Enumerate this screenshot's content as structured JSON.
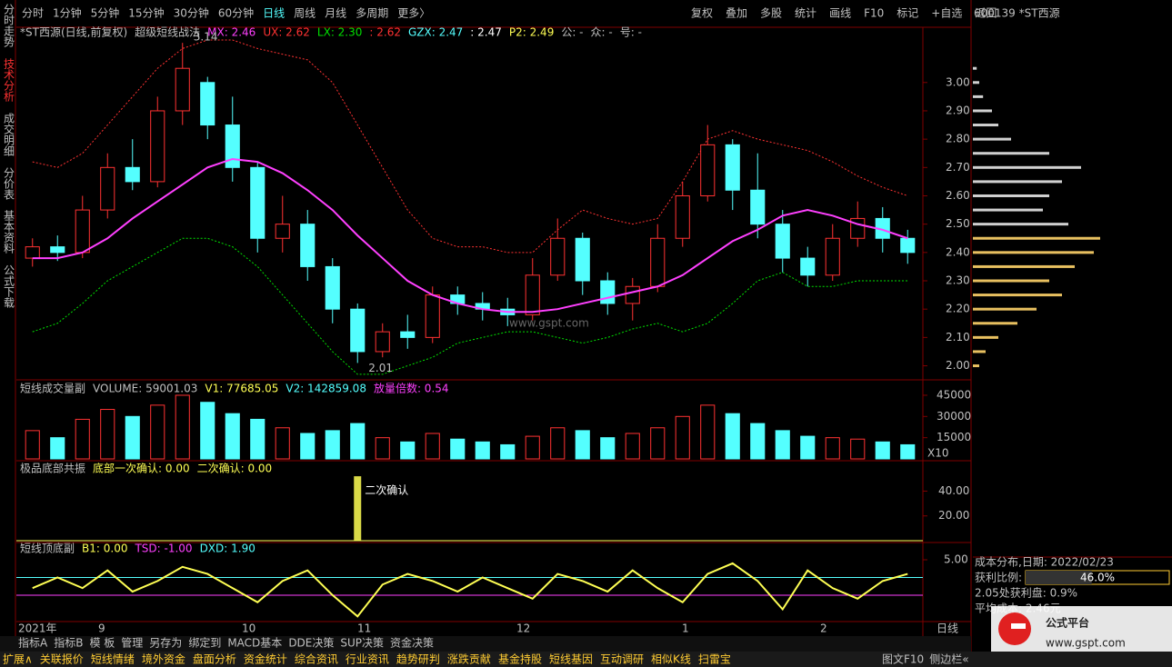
{
  "toolbar": {
    "periods": [
      "分时",
      "1分钟",
      "5分钟",
      "15分钟",
      "30分钟",
      "60分钟",
      "日线",
      "周线",
      "月线",
      "多周期",
      "更多〉"
    ],
    "active": "日线",
    "actions": [
      "复权",
      "叠加",
      "多股",
      "统计",
      "画线",
      "F10",
      "标记",
      "+自选",
      "返回"
    ]
  },
  "sidebar": [
    "分时走势",
    "技术分析",
    "成交明细",
    "分价表",
    "基本资料",
    "公式下载"
  ],
  "main_chart": {
    "header": [
      {
        "text": "*ST西源(日线,前复权)",
        "color": "#c0c0c0"
      },
      {
        "text": "超级短线战法",
        "color": "#c0c0c0"
      },
      {
        "text": "MX: 2.46",
        "color": "#ff40ff"
      },
      {
        "text": "UX: 2.62",
        "color": "#ff3232"
      },
      {
        "text": "LX: 2.30",
        "color": "#00e000"
      },
      {
        "text": ": 2.62",
        "color": "#ff3232"
      },
      {
        "text": "GZX: 2.47",
        "color": "#54ffff"
      },
      {
        "text": ": 2.47",
        "color": "#ffffff"
      },
      {
        "text": "P2: 2.49",
        "color": "#ffff54"
      },
      {
        "text": "公: -",
        "color": "#c0c0c0"
      },
      {
        "text": "众: -",
        "color": "#c0c0c0"
      },
      {
        "text": "号: -",
        "color": "#c0c0c0"
      }
    ],
    "high_label": "3.14",
    "low_label": "2.01",
    "watermark": "www.gspt.com",
    "ylim": [
      1.96,
      3.195
    ],
    "yticks": [
      {
        "value": 2,
        "label": "2.00"
      },
      {
        "value": 2.1,
        "label": "2.10"
      },
      {
        "value": 2.2,
        "label": "2.20"
      },
      {
        "value": 2.3,
        "label": "2.30"
      },
      {
        "value": 2.4,
        "label": "2.40"
      },
      {
        "value": 2.5,
        "label": "2.50"
      },
      {
        "value": 2.6,
        "label": "2.60"
      },
      {
        "value": 2.7,
        "label": "2.70"
      },
      {
        "value": 2.8,
        "label": "2.80"
      },
      {
        "value": 2.9,
        "label": "2.90"
      },
      {
        "value": 3,
        "label": "3.00"
      }
    ],
    "candles": [
      [
        2.38,
        2.42,
        2.45,
        2.35
      ],
      [
        2.42,
        2.4,
        2.46,
        2.37
      ],
      [
        2.4,
        2.55,
        2.6,
        2.38
      ],
      [
        2.55,
        2.7,
        2.75,
        2.52
      ],
      [
        2.7,
        2.65,
        2.8,
        2.62
      ],
      [
        2.65,
        2.9,
        2.95,
        2.63
      ],
      [
        2.9,
        3.05,
        3.14,
        2.85
      ],
      [
        3.0,
        2.85,
        3.02,
        2.8
      ],
      [
        2.85,
        2.7,
        2.95,
        2.65
      ],
      [
        2.7,
        2.45,
        2.72,
        2.4
      ],
      [
        2.45,
        2.5,
        2.6,
        2.4
      ],
      [
        2.5,
        2.35,
        2.55,
        2.3
      ],
      [
        2.35,
        2.2,
        2.38,
        2.15
      ],
      [
        2.2,
        2.05,
        2.22,
        2.01
      ],
      [
        2.05,
        2.12,
        2.15,
        2.03
      ],
      [
        2.12,
        2.1,
        2.18,
        2.06
      ],
      [
        2.1,
        2.25,
        2.28,
        2.08
      ],
      [
        2.25,
        2.22,
        2.28,
        2.18
      ],
      [
        2.22,
        2.2,
        2.26,
        2.16
      ],
      [
        2.2,
        2.18,
        2.24,
        2.14
      ],
      [
        2.18,
        2.32,
        2.38,
        2.16
      ],
      [
        2.32,
        2.45,
        2.52,
        2.3
      ],
      [
        2.45,
        2.3,
        2.47,
        2.25
      ],
      [
        2.3,
        2.22,
        2.33,
        2.18
      ],
      [
        2.22,
        2.28,
        2.31,
        2.16
      ],
      [
        2.28,
        2.45,
        2.5,
        2.26
      ],
      [
        2.45,
        2.6,
        2.65,
        2.42
      ],
      [
        2.6,
        2.78,
        2.85,
        2.58
      ],
      [
        2.78,
        2.62,
        2.8,
        2.55
      ],
      [
        2.62,
        2.5,
        2.75,
        2.45
      ],
      [
        2.5,
        2.38,
        2.55,
        2.33
      ],
      [
        2.38,
        2.32,
        2.42,
        2.28
      ],
      [
        2.32,
        2.45,
        2.5,
        2.3
      ],
      [
        2.45,
        2.52,
        2.58,
        2.42
      ],
      [
        2.52,
        2.45,
        2.56,
        2.4
      ],
      [
        2.45,
        2.4,
        2.48,
        2.36
      ]
    ],
    "ma": [
      2.38,
      2.38,
      2.4,
      2.45,
      2.52,
      2.58,
      2.64,
      2.7,
      2.73,
      2.72,
      2.68,
      2.62,
      2.55,
      2.46,
      2.38,
      2.3,
      2.25,
      2.22,
      2.2,
      2.19,
      2.19,
      2.2,
      2.22,
      2.24,
      2.26,
      2.28,
      2.32,
      2.38,
      2.44,
      2.48,
      2.53,
      2.55,
      2.53,
      2.5,
      2.48,
      2.45
    ],
    "upper": [
      2.72,
      2.7,
      2.75,
      2.85,
      2.95,
      3.05,
      3.12,
      3.15,
      3.15,
      3.12,
      3.1,
      3.08,
      3.0,
      2.85,
      2.7,
      2.55,
      2.45,
      2.42,
      2.42,
      2.4,
      2.4,
      2.48,
      2.55,
      2.52,
      2.5,
      2.52,
      2.65,
      2.8,
      2.83,
      2.8,
      2.78,
      2.76,
      2.72,
      2.67,
      2.63,
      2.6
    ],
    "lower": [
      2.12,
      2.15,
      2.22,
      2.3,
      2.35,
      2.4,
      2.45,
      2.45,
      2.42,
      2.35,
      2.25,
      2.15,
      2.05,
      1.97,
      1.97,
      2.0,
      2.03,
      2.08,
      2.1,
      2.12,
      2.12,
      2.1,
      2.08,
      2.1,
      2.13,
      2.15,
      2.12,
      2.15,
      2.22,
      2.3,
      2.33,
      2.28,
      2.28,
      2.3,
      2.3,
      2.3
    ],
    "x_labels": [
      "2021年",
      "9",
      "10",
      "11",
      "12",
      "1",
      "2"
    ],
    "period_label": "日线"
  },
  "volume_pane": {
    "header": [
      {
        "text": "短线成交量副",
        "color": "#c0c0c0"
      },
      {
        "text": "VOLUME: 59001.03",
        "color": "#c0c0c0"
      },
      {
        "text": "V1: 77685.05",
        "color": "#ffff54"
      },
      {
        "text": "V2: 142859.08",
        "color": "#54ffff"
      },
      {
        "text": "放量倍数: 0.54",
        "color": "#ff40ff"
      }
    ],
    "ylim": [
      0,
      51400
    ],
    "yticks": [
      15000,
      30000,
      45000
    ],
    "unit": "X10",
    "values": [
      20000,
      15000,
      28000,
      35000,
      30000,
      38000,
      45000,
      40000,
      32000,
      28000,
      22000,
      18000,
      20000,
      25000,
      15000,
      12000,
      18000,
      14000,
      12000,
      10000,
      16000,
      22000,
      20000,
      15000,
      18000,
      22000,
      30000,
      38000,
      32000,
      25000,
      20000,
      16000,
      15000,
      14000,
      12000,
      10000
    ]
  },
  "confirm_pane": {
    "header": [
      {
        "text": "极品底部共振",
        "color": "#c0c0c0"
      },
      {
        "text": "底部一次确认: 0.00",
        "color": "#ffff54"
      },
      {
        "text": "二次确认: 0.00",
        "color": "#ffff54"
      }
    ],
    "annotation": "二次确认",
    "ylim": [
      0,
      55
    ],
    "yticks": [
      {
        "value": 20,
        "label": "20.00"
      },
      {
        "value": 40,
        "label": "40.00"
      }
    ],
    "values": [
      0,
      0,
      0,
      0,
      0,
      0,
      0,
      0,
      0,
      0,
      0,
      0,
      0,
      52,
      0,
      0,
      0,
      0,
      0,
      0,
      0,
      0,
      0,
      0,
      0,
      0,
      0,
      0,
      0,
      0,
      0,
      0,
      0,
      0,
      0,
      0
    ]
  },
  "osc_pane": {
    "header": [
      {
        "text": "短线顶底副",
        "color": "#c0c0c0"
      },
      {
        "text": "B1: 0.00",
        "color": "#ffff54"
      },
      {
        "text": "TSD: -1.00",
        "color": "#ff40ff"
      },
      {
        "text": "DXD: 1.90",
        "color": "#54ffff"
      }
    ],
    "ylim": [
      -4.5,
      5.77
    ],
    "yticks": [
      {
        "value": 5,
        "label": "5.00"
      }
    ],
    "reference_lines": [
      {
        "value": 2.5,
        "color": "#54ffff"
      },
      {
        "value": 0,
        "color": "#ff40ff"
      }
    ],
    "values": [
      1,
      2.5,
      1,
      3.5,
      0.5,
      2,
      4,
      3,
      1,
      -1,
      2,
      3.5,
      0,
      -3,
      1.5,
      3,
      2,
      0.5,
      2.5,
      1,
      -0.5,
      3,
      2,
      0.5,
      3.5,
      1,
      -1,
      3,
      4.5,
      2,
      -2,
      3.5,
      1,
      -0.5,
      2,
      3
    ]
  },
  "tabs": [
    "指标A",
    "指标B",
    "模 板",
    "管理",
    "另存为",
    "绑定到",
    "MACD基本",
    "DDE决策",
    "SUP决策",
    "资金决策"
  ],
  "bottom_bar": [
    "扩展∧",
    "关联报价",
    "短线情绪",
    "境外资金",
    "盘面分析",
    "资金统计",
    "综合资讯",
    "行业资讯",
    "趋势研判",
    "涨跌贡献",
    "基金持股",
    "短线基因",
    "互动调研",
    "相似K线",
    "扫雷宝"
  ],
  "bottom_right": [
    "图文F10",
    "侧边栏«"
  ],
  "right_panel": {
    "stock": "600139 *ST西源",
    "title": "成本分布,日期: 2022/02/23",
    "ratio_label": "获利比例:",
    "profit_ratio": {
      "value": 46,
      "label": "46.0%"
    },
    "profit_at": "2.05处获利盘: 0.9%",
    "avg_cost": "平均成本: 2.46元",
    "chip_prices": [
      2.0,
      2.05,
      2.1,
      2.15,
      2.2,
      2.25,
      2.3,
      2.35,
      2.4,
      2.45,
      2.5,
      2.55,
      2.6,
      2.65,
      2.7,
      2.75,
      2.8,
      2.85,
      2.9,
      2.95,
      3.0,
      3.05
    ],
    "chip_values": [
      5,
      10,
      20,
      35,
      50,
      70,
      60,
      80,
      95,
      100,
      75,
      55,
      60,
      70,
      85,
      60,
      30,
      20,
      15,
      8,
      5,
      3
    ]
  },
  "logo": {
    "title": "公式平台",
    "url": "www.gspt.com"
  }
}
